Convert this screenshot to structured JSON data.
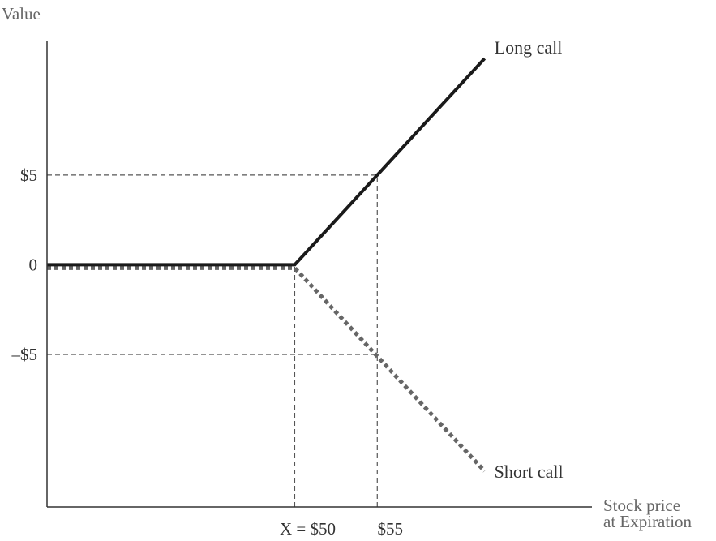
{
  "chart_data": {
    "type": "line",
    "title": "",
    "ylabel": "Value",
    "xlabel": [
      "Stock price",
      "at Expiration"
    ],
    "x_ticks": [
      {
        "value": 50,
        "label": "X = $50"
      },
      {
        "value": 55,
        "label": "$55"
      }
    ],
    "y_ticks": [
      {
        "value": 5,
        "label": "$5"
      },
      {
        "value": 0,
        "label": "0"
      },
      {
        "value": -5,
        "label": "–$5"
      }
    ],
    "xlim": [
      35,
      68
    ],
    "ylim": [
      -13.5,
      12.5
    ],
    "series": [
      {
        "name": "Long call",
        "style": "solid",
        "color": "#1a1a1a",
        "points": [
          [
            35,
            0
          ],
          [
            50,
            0
          ],
          [
            61.5,
            11.5
          ]
        ]
      },
      {
        "name": "Short call",
        "style": "dotted",
        "color": "#666666",
        "points": [
          [
            35,
            0
          ],
          [
            50,
            0
          ],
          [
            61.5,
            -11.5
          ]
        ]
      }
    ],
    "reference_lines": [
      {
        "from": [
          35,
          5
        ],
        "to": [
          55,
          5
        ]
      },
      {
        "from": [
          35,
          -5
        ],
        "to": [
          55,
          -5
        ]
      },
      {
        "from": [
          50,
          -13.5
        ],
        "to": [
          50,
          0
        ]
      },
      {
        "from": [
          55,
          -13.5
        ],
        "to": [
          55,
          5
        ]
      }
    ],
    "grid": false,
    "legend": "none"
  }
}
